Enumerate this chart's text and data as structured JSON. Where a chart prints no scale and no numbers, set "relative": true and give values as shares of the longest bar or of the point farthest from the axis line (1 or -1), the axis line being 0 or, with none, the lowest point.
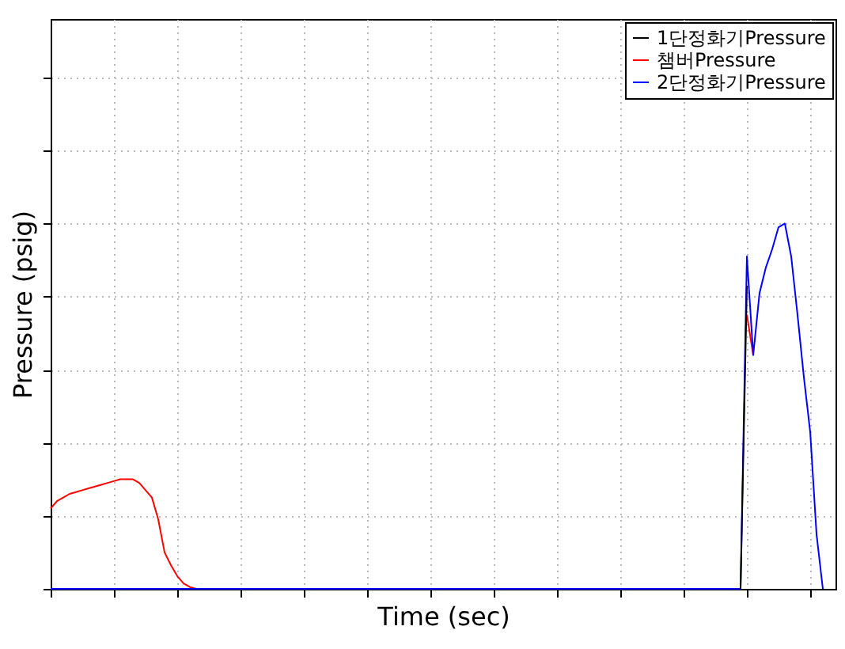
{
  "chart_data": {
    "type": "line",
    "relative": true,
    "xlabel": "Time (sec)",
    "ylabel": "Pressure (psig)",
    "grid": true,
    "legend": "top right",
    "categories": [
      null,
      null,
      null,
      null,
      null,
      null,
      null,
      null,
      null,
      null,
      null,
      null,
      null,
      null,
      null,
      null,
      null,
      null,
      null,
      null,
      null,
      null,
      null,
      null,
      null,
      null,
      null,
      null,
      null,
      null,
      null,
      null,
      null,
      null,
      null,
      null,
      null,
      null,
      null,
      null,
      null,
      null,
      null,
      null,
      null,
      null,
      null,
      null,
      null,
      null,
      null,
      null,
      null,
      null,
      null,
      null,
      null,
      null,
      null,
      null,
      null,
      null,
      null,
      null,
      null,
      null,
      null,
      null,
      null,
      null,
      null,
      null,
      null,
      null,
      null,
      null,
      null,
      null,
      null,
      null,
      null,
      null,
      null,
      null,
      null,
      null,
      null,
      null,
      null,
      null,
      null,
      null,
      null,
      null,
      null,
      null,
      null,
      null,
      null,
      null,
      null,
      null,
      null,
      null,
      null,
      null,
      null,
      null,
      null,
      null,
      null,
      null,
      null,
      null,
      null,
      null,
      null,
      null,
      null,
      null,
      null,
      null,
      null,
      null,
      null
    ],
    "series": [
      {
        "name": "1단정화기Pressure",
        "color": "#000000",
        "values": [
          null,
          null,
          null,
          null,
          null,
          null,
          null,
          null,
          null,
          null,
          null,
          null,
          null,
          null,
          null,
          null,
          null,
          null,
          null,
          null,
          null,
          null,
          null,
          null,
          null,
          null,
          null,
          null,
          null,
          null,
          null,
          null,
          null,
          null,
          null,
          null,
          null,
          null,
          null,
          null,
          null,
          null,
          null,
          null,
          null,
          null,
          null,
          null,
          null,
          null,
          null,
          null,
          null,
          null,
          null,
          null,
          null,
          null,
          null,
          null,
          null,
          null,
          null,
          null,
          null,
          null,
          null,
          null,
          null,
          null,
          null,
          null,
          null,
          null,
          null,
          null,
          null,
          null,
          null,
          null,
          null,
          null,
          null,
          null,
          null,
          null,
          null,
          null,
          null,
          null,
          null,
          null,
          null,
          null,
          null,
          null,
          null,
          null,
          null,
          null,
          null,
          null,
          null,
          null,
          null,
          null,
          null,
          null,
          null,
          0,
          0.83,
          null,
          null,
          null,
          null,
          null,
          null,
          null,
          null,
          null,
          null,
          null,
          null,
          null,
          null
        ]
      },
      {
        "name": "챔버Pressure",
        "color": "#ff0000",
        "values": [
          0.22,
          0.24,
          0.25,
          0.26,
          0.265,
          0.27,
          0.275,
          0.28,
          0.285,
          0.29,
          0.295,
          0.3,
          0.3,
          0.3,
          0.29,
          0.27,
          0.25,
          0.19,
          0.1,
          0.065,
          0.035,
          0.015,
          0.005,
          0,
          null,
          null,
          null,
          null,
          null,
          null,
          null,
          null,
          null,
          null,
          null,
          null,
          null,
          null,
          null,
          null,
          null,
          null,
          null,
          null,
          null,
          null,
          null,
          null,
          null,
          null,
          null,
          null,
          null,
          null,
          null,
          null,
          null,
          null,
          null,
          null,
          null,
          null,
          null,
          null,
          null,
          null,
          null,
          null,
          null,
          null,
          null,
          null,
          null,
          null,
          null,
          null,
          null,
          null,
          null,
          null,
          null,
          null,
          null,
          null,
          null,
          null,
          null,
          null,
          null,
          null,
          null,
          null,
          null,
          null,
          null,
          null,
          null,
          null,
          null,
          null,
          null,
          null,
          null,
          null,
          null,
          null,
          null,
          null,
          null,
          null,
          0.75,
          0.64,
          null,
          null,
          null,
          null,
          null,
          null,
          null,
          null,
          null,
          null,
          null,
          null,
          null
        ]
      },
      {
        "name": "2단정화기Pressure",
        "color": "#0000ff",
        "values": [
          0,
          0,
          0,
          0,
          0,
          0,
          0,
          0,
          0,
          0,
          0,
          0,
          0,
          0,
          0,
          0,
          0,
          0,
          0,
          0,
          0,
          0,
          0,
          0,
          0,
          0,
          0,
          0,
          0,
          0,
          0,
          0,
          0,
          0,
          0,
          0,
          0,
          0,
          0,
          0,
          0,
          0,
          0,
          0,
          0,
          0,
          0,
          0,
          0,
          0,
          0,
          0,
          0,
          0,
          0,
          0,
          0,
          0,
          0,
          0,
          0,
          0,
          0,
          0,
          0,
          0,
          0,
          0,
          0,
          0,
          0,
          0,
          0,
          0,
          0,
          0,
          0,
          0,
          0,
          0,
          0,
          0,
          0,
          0,
          0,
          0,
          0,
          0,
          0,
          0,
          0,
          0,
          0,
          0,
          0,
          0,
          0,
          0,
          0,
          0,
          0,
          0,
          0,
          0,
          0,
          0,
          0,
          0,
          0,
          0,
          0.91,
          0.64,
          0.81,
          0.88,
          0.93,
          0.99,
          1,
          0.91,
          0.75,
          0.58,
          0.43,
          0.15,
          0,
          null,
          null
        ]
      }
    ]
  }
}
